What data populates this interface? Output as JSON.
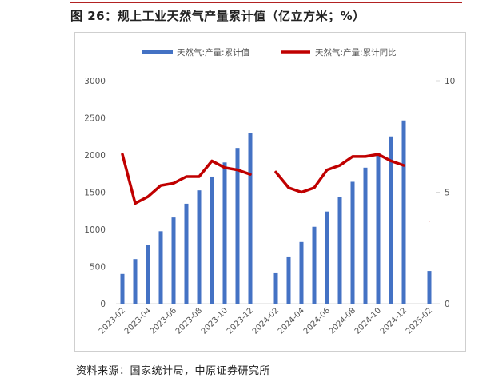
{
  "title": "图 26：规上工业天然气产量累计值（亿立方米；%）",
  "source": "资料来源：国家统计局，中原证券研究所",
  "colors": {
    "bar": "#4472C4",
    "line": "#C00000",
    "axis": "#d9d9d9",
    "rule": "#b22222"
  },
  "chart_data": {
    "type": "bar+line",
    "legend_position": "top",
    "categories": [
      "2023-02",
      "2023-03",
      "2023-04",
      "2023-05",
      "2023-06",
      "2023-07",
      "2023-08",
      "2023-09",
      "2023-10",
      "2023-11",
      "2023-12",
      "2024-01",
      "2024-02",
      "2024-03",
      "2024-04",
      "2024-05",
      "2024-06",
      "2024-07",
      "2024-08",
      "2024-09",
      "2024-10",
      "2024-11",
      "2024-12",
      "2025-01",
      "2025-02"
    ],
    "x_tick_labels": [
      "2023-02",
      "2023-04",
      "2023-06",
      "2023-08",
      "2023-10",
      "2023-12",
      "2024-02",
      "2024-04",
      "2024-06",
      "2024-08",
      "2024-10",
      "2024-12",
      "2025-02"
    ],
    "series": [
      {
        "name": "天然气:产量:累计值",
        "type": "bar",
        "axis": "left",
        "values": [
          400,
          600,
          790,
          975,
          1160,
          1345,
          1525,
          1710,
          1900,
          2095,
          2300,
          null,
          420,
          635,
          830,
          1035,
          1240,
          1440,
          1640,
          1830,
          2030,
          2250,
          2465,
          null,
          440
        ]
      },
      {
        "name": "天然气:产量:累计同比",
        "type": "line",
        "axis": "right",
        "values": [
          6.7,
          4.5,
          4.8,
          5.3,
          5.4,
          5.7,
          5.7,
          6.4,
          6.1,
          6.0,
          5.8,
          null,
          5.9,
          5.2,
          5.0,
          5.2,
          6.0,
          6.2,
          6.6,
          6.6,
          6.7,
          6.4,
          6.2,
          null,
          3.7
        ]
      }
    ],
    "y_left": {
      "min": 0,
      "max": 3000,
      "ticks": [
        0,
        500,
        1000,
        1500,
        2000,
        2500,
        3000
      ]
    },
    "y_right": {
      "min": 0,
      "max": 10,
      "ticks": [
        0,
        5,
        10
      ]
    }
  }
}
